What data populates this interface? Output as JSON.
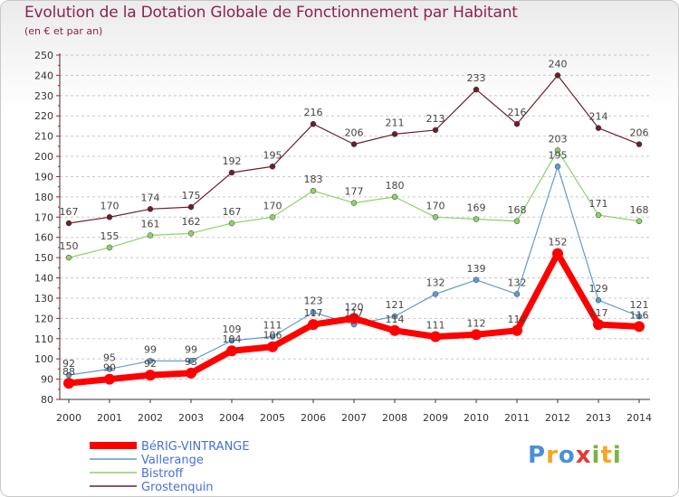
{
  "title": "Evolution de la Dotation Globale de Fonctionnement par Habitant",
  "subtitle": "(en € et par an)",
  "logo_text": "Proxiti",
  "chart_data": {
    "type": "line",
    "title": "Evolution de la Dotation Globale de Fonctionnement par Habitant",
    "subtitle": "(en € et par an)",
    "xlabel": "",
    "ylabel": "",
    "ylim": [
      80,
      250
    ],
    "yticks": [
      80,
      90,
      100,
      110,
      120,
      130,
      140,
      150,
      160,
      170,
      180,
      190,
      200,
      210,
      220,
      230,
      240,
      250
    ],
    "grid": "horizontal-dashed",
    "categories": [
      "2000",
      "2001",
      "2002",
      "2003",
      "2004",
      "2005",
      "2006",
      "2007",
      "2008",
      "2009",
      "2010",
      "2011",
      "2012",
      "2013",
      "2014"
    ],
    "series": [
      {
        "name": "Grostenquin",
        "color": "#6b1f2a",
        "values": [
          167,
          170,
          174,
          175,
          192,
          195,
          216,
          206,
          211,
          213,
          233,
          216,
          240,
          214,
          206
        ]
      },
      {
        "name": "Bistroff",
        "color": "#8fd16a",
        "values": [
          150,
          155,
          161,
          162,
          167,
          170,
          183,
          177,
          180,
          170,
          169,
          168,
          203,
          171,
          168
        ]
      },
      {
        "name": "Vallerange",
        "color": "#5f9ccf",
        "values": [
          92,
          95,
          99,
          99,
          109,
          111,
          123,
          117,
          121,
          132,
          139,
          132,
          195,
          129,
          121
        ]
      },
      {
        "name": "BéRIG-VINTRANGE",
        "color": "#ff0000",
        "values": [
          88,
          90,
          92,
          93,
          104,
          106,
          117,
          120,
          114,
          111,
          112,
          114,
          152,
          117,
          116
        ]
      }
    ],
    "legend": [
      "BéRIG-VINTRANGE",
      "Vallerange",
      "Bistroff",
      "Grostenquin"
    ],
    "legend_position": "bottom-left"
  }
}
